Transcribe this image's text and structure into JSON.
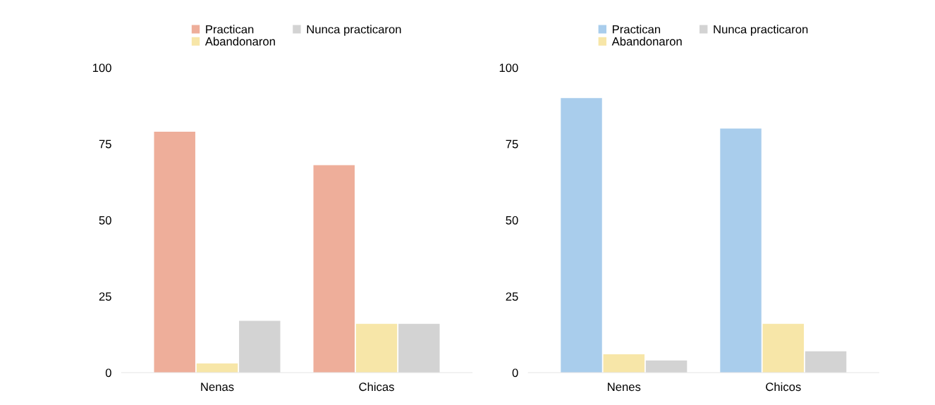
{
  "chart_data": [
    {
      "type": "bar",
      "categories": [
        "Nenas",
        "Chicas"
      ],
      "series": [
        {
          "name": "Practican",
          "color": "#eeae9a",
          "values": [
            79,
            68
          ]
        },
        {
          "name": "Abandonaron",
          "color": "#f7e6a8",
          "values": [
            3,
            16
          ]
        },
        {
          "name": "Nunca practicaron",
          "color": "#d3d3d3",
          "values": [
            17,
            16
          ]
        }
      ],
      "ylim": [
        0,
        100
      ],
      "yticks": [
        0,
        25,
        50,
        75,
        100
      ],
      "grid": false,
      "legend": "top"
    },
    {
      "type": "bar",
      "categories": [
        "Nenes",
        "Chicos"
      ],
      "series": [
        {
          "name": "Practican",
          "color": "#a9cdec",
          "values": [
            90,
            80
          ]
        },
        {
          "name": "Abandonaron",
          "color": "#f7e6a8",
          "values": [
            6,
            16
          ]
        },
        {
          "name": "Nunca practicaron",
          "color": "#d3d3d3",
          "values": [
            4,
            7
          ]
        }
      ],
      "ylim": [
        0,
        100
      ],
      "yticks": [
        0,
        25,
        50,
        75,
        100
      ],
      "grid": false,
      "legend": "top"
    }
  ]
}
